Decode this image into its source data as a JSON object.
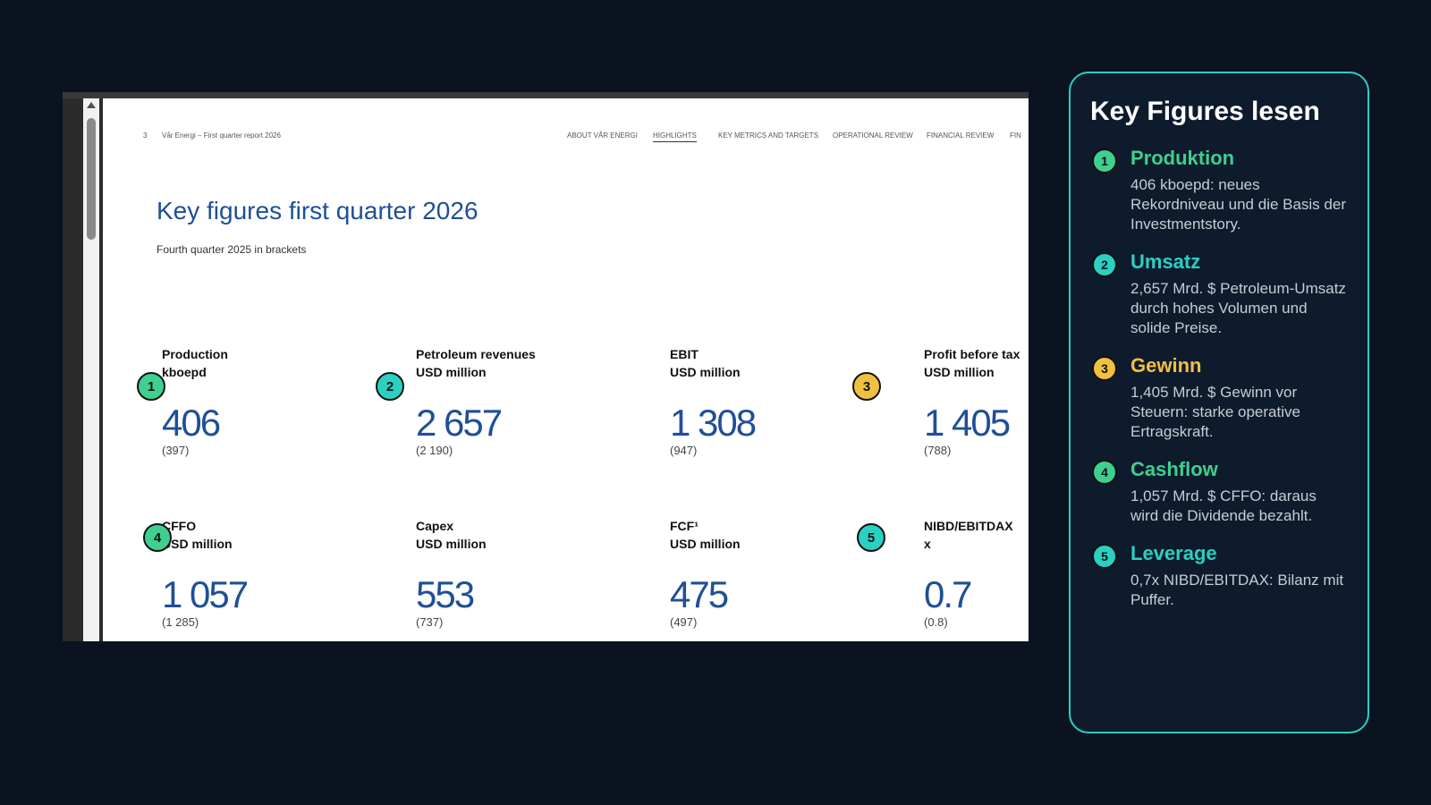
{
  "document": {
    "page_number": "3",
    "doc_title": "Vår Energi – First quarter report 2026",
    "nav": [
      {
        "label": "ABOUT VÅR ENERGI",
        "active": false
      },
      {
        "label": "HIGHLIGHTS",
        "active": true
      },
      {
        "label": "KEY METRICS AND TARGETS",
        "active": false
      },
      {
        "label": "OPERATIONAL REVIEW",
        "active": false
      },
      {
        "label": "FINANCIAL REVIEW",
        "active": false
      },
      {
        "label": "FIN",
        "active": false
      }
    ],
    "heading": "Key figures first quarter 2026",
    "subheading": "Fourth quarter 2025 in brackets",
    "metrics": [
      {
        "label1": "Production",
        "label2": "kboepd",
        "value": "406",
        "prev": "(397)"
      },
      {
        "label1": "Petroleum revenues",
        "label2": "USD million",
        "value": "2 657",
        "prev": "(2 190)"
      },
      {
        "label1": "EBIT",
        "label2": "USD million",
        "value": "1 308",
        "prev": "(947)"
      },
      {
        "label1": "Profit before tax",
        "label2": "USD million",
        "value": "1 405",
        "prev": "(788)"
      },
      {
        "label1": "CFFO",
        "label2": "USD million",
        "value": "1 057",
        "prev": "(1 285)"
      },
      {
        "label1": "Capex",
        "label2": "USD million",
        "value": "553",
        "prev": "(737)"
      },
      {
        "label1": "FCF¹",
        "label2": "USD million",
        "value": "475",
        "prev": "(497)"
      },
      {
        "label1": "NIBD/EBITDAX",
        "label2": "x",
        "value": "0.7",
        "prev": "(0.8)"
      }
    ],
    "badges": [
      {
        "number": "1",
        "color": "#3fcf8e"
      },
      {
        "number": "2",
        "color": "#2ad0c2"
      },
      {
        "number": "3",
        "color": "#f2c040"
      },
      {
        "number": "4",
        "color": "#3fcf8e"
      },
      {
        "number": "5",
        "color": "#2ad0c2"
      }
    ]
  },
  "guide": {
    "title": "Key Figures lesen",
    "items": [
      {
        "number": "1",
        "heading": "Produktion",
        "color": "#3fcf8e",
        "text": "406 kboepd: neues Rekordniveau und die Basis der Investmentstory."
      },
      {
        "number": "2",
        "heading": "Umsatz",
        "color": "#2ad0c2",
        "text": "2,657 Mrd. $ Petroleum-Umsatz durch hohes Volumen und solide Preise."
      },
      {
        "number": "3",
        "heading": "Gewinn",
        "color": "#f2c040",
        "text": "1,405 Mrd. $ Gewinn vor Steuern: starke operative Ertragskraft."
      },
      {
        "number": "4",
        "heading": "Cashflow",
        "color": "#3fcf8e",
        "text": "1,057 Mrd. $ CFFO: daraus wird die Dividende bezahlt."
      },
      {
        "number": "5",
        "heading": "Leverage",
        "color": "#2ad0c2",
        "text": "0,7x NIBD/EBITDAX: Bilanz mit Puffer."
      }
    ]
  }
}
